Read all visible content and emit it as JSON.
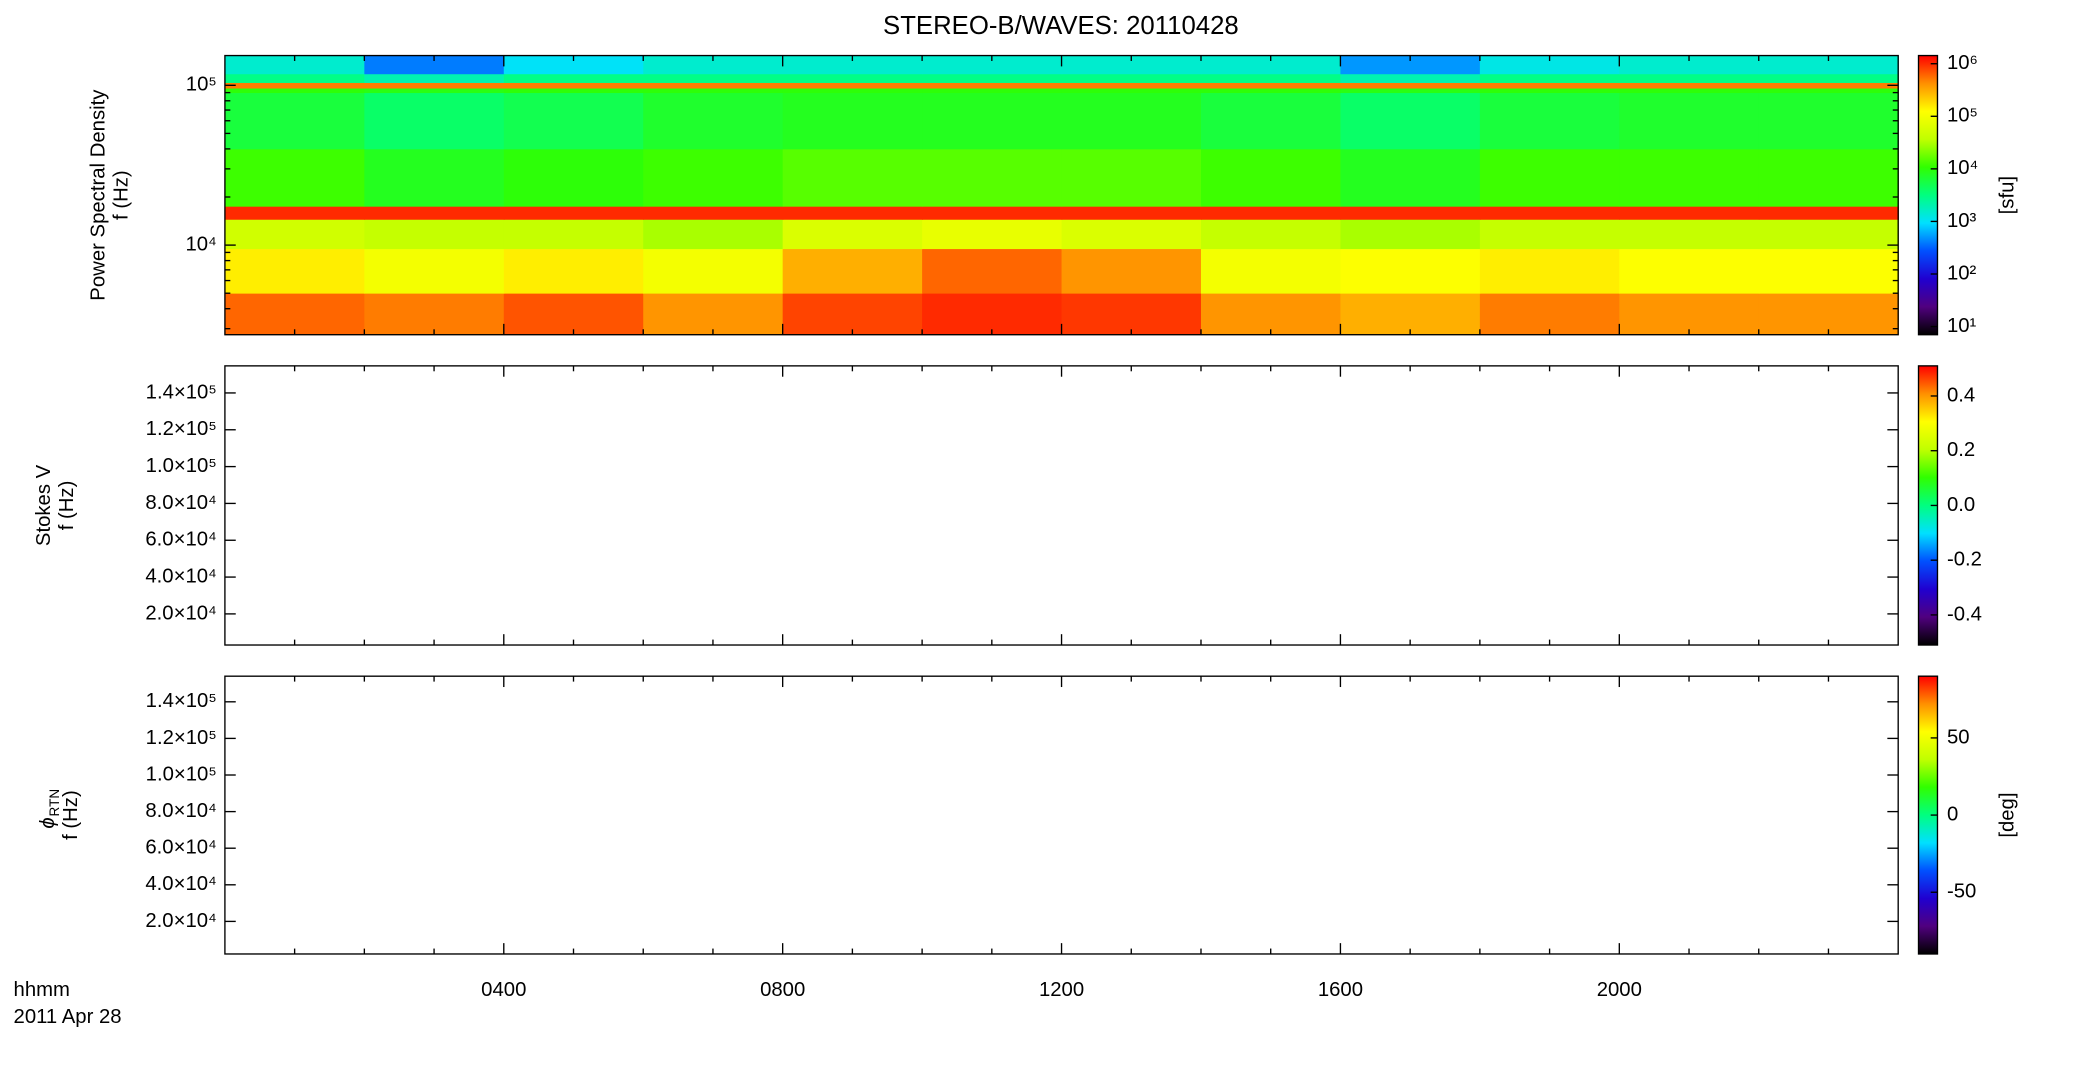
{
  "chart_data": [
    {
      "type": "heatmap",
      "title": "STEREO-B/WAVES: 20110428",
      "y_label": "Power Spectral Density",
      "y_unit_label": "f (Hz)",
      "xlim": [
        0,
        24
      ],
      "xticks": [
        4,
        8,
        12,
        16,
        20
      ],
      "xminorticks": [
        1,
        2,
        3,
        5,
        6,
        7,
        9,
        10,
        11,
        13,
        14,
        15,
        17,
        18,
        19,
        21,
        22,
        23
      ],
      "ylim": [
        2750,
        153500
      ],
      "ylog": true,
      "yticks": [
        {
          "value": 10000,
          "label": "10⁴"
        },
        {
          "value": 100000,
          "label": "10⁵"
        }
      ],
      "yminorticks": [
        3000,
        4000,
        5000,
        6000,
        7000,
        8000,
        9000,
        20000,
        30000,
        40000,
        50000,
        60000,
        70000,
        80000,
        90000
      ],
      "xbins": [
        0,
        2,
        4,
        6,
        8,
        10,
        12,
        14,
        16,
        18,
        20,
        22,
        24
      ],
      "ybins": [
        2750,
        5000,
        9500,
        14500,
        17500,
        40000,
        90000,
        96000,
        104000,
        118000,
        153500
      ],
      "z": [
        [
          600000,
          500000,
          700000,
          400000,
          800000,
          1000000,
          900000,
          400000,
          300000,
          500000,
          400000,
          400000
        ],
        [
          150000,
          100000,
          150000,
          100000,
          300000,
          600000,
          400000,
          100000,
          120000,
          150000,
          120000,
          120000
        ],
        [
          50000,
          40000,
          40000,
          30000,
          60000,
          80000,
          60000,
          40000,
          30000,
          40000,
          40000,
          40000
        ],
        [
          1000000,
          1000000,
          1000000,
          1000000,
          1000000,
          1000000,
          1000000,
          1000000,
          1000000,
          1000000,
          1000000,
          1000000
        ],
        [
          12000,
          8000,
          10000,
          12000,
          15000,
          15000,
          15000,
          12000,
          8000,
          12000,
          12000,
          12000
        ],
        [
          6000,
          4000,
          5000,
          7000,
          8000,
          8000,
          8000,
          6000,
          4000,
          6000,
          7000,
          7000
        ],
        [
          10000,
          9000,
          10000,
          10000,
          10000,
          10000,
          10000,
          10000,
          9000,
          10000,
          10000,
          10000
        ],
        [
          500000,
          500000,
          500000,
          500000,
          500000,
          500000,
          500000,
          500000,
          500000,
          500000,
          500000,
          500000
        ],
        [
          3000,
          2000,
          3000,
          3000,
          3000,
          3000,
          3000,
          3000,
          2000,
          3000,
          3000,
          3000
        ],
        [
          1500,
          400,
          1000,
          1500,
          1500,
          1500,
          1500,
          1500,
          500,
          1200,
          1500,
          1500
        ]
      ],
      "colorbar": {
        "label": "[sfu]",
        "log": true,
        "zlim": [
          7,
          1430000
        ],
        "zticks": [
          {
            "value": 10,
            "label": "10¹"
          },
          {
            "value": 100,
            "label": "10²"
          },
          {
            "value": 1000,
            "label": "10³"
          },
          {
            "value": 10000,
            "label": "10⁴"
          },
          {
            "value": 100000,
            "label": "10⁵"
          },
          {
            "value": 1000000,
            "label": "10⁶"
          }
        ],
        "colormap": [
          "#000000",
          "#50007f",
          "#2000d0",
          "#0050ff",
          "#00e0ff",
          "#00ff80",
          "#30ff00",
          "#c0ff00",
          "#ffff00",
          "#ff9000",
          "#ff0000"
        ]
      }
    },
    {
      "type": "heatmap",
      "y_label": "Stokes V",
      "y_unit_label": "f (Hz)",
      "xlim": [
        0,
        24
      ],
      "xticks": [
        4,
        8,
        12,
        16,
        20
      ],
      "xminorticks": [
        1,
        2,
        3,
        5,
        6,
        7,
        9,
        10,
        11,
        13,
        14,
        15,
        17,
        18,
        19,
        21,
        22,
        23
      ],
      "ylim": [
        3100,
        154700
      ],
      "ylog": false,
      "yticks": [
        {
          "value": 20000,
          "label": "2.0×10⁴"
        },
        {
          "value": 40000,
          "label": "4.0×10⁴"
        },
        {
          "value": 60000,
          "label": "6.0×10⁴"
        },
        {
          "value": 80000,
          "label": "8.0×10⁴"
        },
        {
          "value": 100000,
          "label": "1.0×10⁵"
        },
        {
          "value": 120000,
          "label": "1.2×10⁵"
        },
        {
          "value": 140000,
          "label": "1.4×10⁵"
        }
      ],
      "colorbar": {
        "log": false,
        "zlim": [
          -0.51,
          0.51
        ],
        "zticks": [
          -0.4,
          -0.2,
          {
            "value": 0,
            "label": "0.0"
          },
          0.2,
          0.4
        ]
      }
    },
    {
      "type": "heatmap",
      "y_label_symbol": "ϕ",
      "y_label_subscript": "RTN",
      "y_unit_label": "f (Hz)",
      "x_label": "hhmm",
      "x_sublabel": "2011 Apr 28",
      "xlim": [
        0,
        24
      ],
      "xticks": [
        {
          "value": 4,
          "label": "0400"
        },
        {
          "value": 8,
          "label": "0800"
        },
        {
          "value": 12,
          "label": "1200"
        },
        {
          "value": 16,
          "label": "1600"
        },
        {
          "value": 20,
          "label": "2000"
        }
      ],
      "xminorticks": [
        1,
        2,
        3,
        5,
        6,
        7,
        9,
        10,
        11,
        13,
        14,
        15,
        17,
        18,
        19,
        21,
        22,
        23
      ],
      "ylim": [
        2200,
        154000
      ],
      "ylog": false,
      "yticks": [
        {
          "value": 20000,
          "label": "2.0×10⁴"
        },
        {
          "value": 40000,
          "label": "4.0×10⁴"
        },
        {
          "value": 60000,
          "label": "6.0×10⁴"
        },
        {
          "value": 80000,
          "label": "8.0×10⁴"
        },
        {
          "value": 100000,
          "label": "1.0×10⁵"
        },
        {
          "value": 120000,
          "label": "1.2×10⁵"
        },
        {
          "value": 140000,
          "label": "1.4×10⁵"
        }
      ],
      "colorbar": {
        "label": "[deg]",
        "log": false,
        "zlim": [
          -90,
          90
        ],
        "zticks": [
          -50,
          0,
          50
        ]
      }
    }
  ]
}
